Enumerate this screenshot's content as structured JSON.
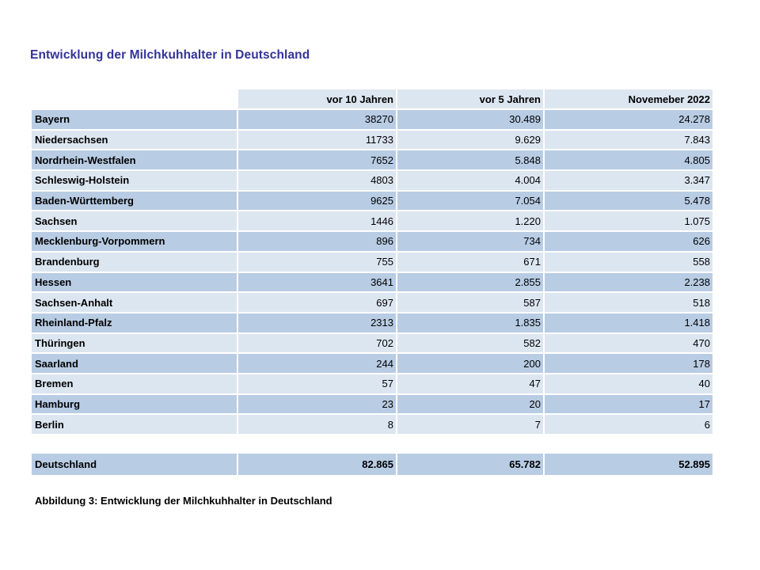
{
  "title": "Entwicklung der Milchkuhhalter in Deutschland",
  "caption": "Abbildung 3: Entwicklung der Milchkuhhalter in Deutschland",
  "table": {
    "columns": [
      "",
      "vor 10 Jahren",
      "vor 5 Jahren",
      "Novemeber 2022"
    ],
    "rows": [
      {
        "name": "Bayern",
        "values": [
          "38270",
          "30.489",
          "24.278"
        ]
      },
      {
        "name": "Niedersachsen",
        "values": [
          "11733",
          "9.629",
          "7.843"
        ]
      },
      {
        "name": "Nordrhein-Westfalen",
        "values": [
          "7652",
          "5.848",
          "4.805"
        ]
      },
      {
        "name": "Schleswig-Holstein",
        "values": [
          "4803",
          "4.004",
          "3.347"
        ]
      },
      {
        "name": "Baden-Württemberg",
        "values": [
          "9625",
          "7.054",
          "5.478"
        ]
      },
      {
        "name": "Sachsen",
        "values": [
          "1446",
          "1.220",
          "1.075"
        ]
      },
      {
        "name": "Mecklenburg-Vorpommern",
        "values": [
          "896",
          "734",
          "626"
        ]
      },
      {
        "name": "Brandenburg",
        "values": [
          "755",
          "671",
          "558"
        ]
      },
      {
        "name": "Hessen",
        "values": [
          "3641",
          "2.855",
          "2.238"
        ]
      },
      {
        "name": "Sachsen-Anhalt",
        "values": [
          "697",
          "587",
          "518"
        ]
      },
      {
        "name": "Rheinland-Pfalz",
        "values": [
          "2313",
          "1.835",
          "1.418"
        ]
      },
      {
        "name": "Thüringen",
        "values": [
          "702",
          "582",
          "470"
        ]
      },
      {
        "name": "Saarland",
        "values": [
          "244",
          "200",
          "178"
        ]
      },
      {
        "name": "Bremen",
        "values": [
          "57",
          "47",
          "40"
        ]
      },
      {
        "name": "Hamburg",
        "values": [
          "23",
          "20",
          "17"
        ]
      },
      {
        "name": "Berlin",
        "values": [
          "8",
          "7",
          "6"
        ]
      }
    ],
    "total": {
      "name": "Deutschland",
      "values": [
        "82.865",
        "65.782",
        "52.895"
      ]
    }
  },
  "colors": {
    "background": "#ffffff",
    "title_text": "#333399",
    "row_dark": "#b8cce4",
    "row_light": "#dce6f1",
    "header_bg": "#dce6f1",
    "text": "#000000"
  }
}
